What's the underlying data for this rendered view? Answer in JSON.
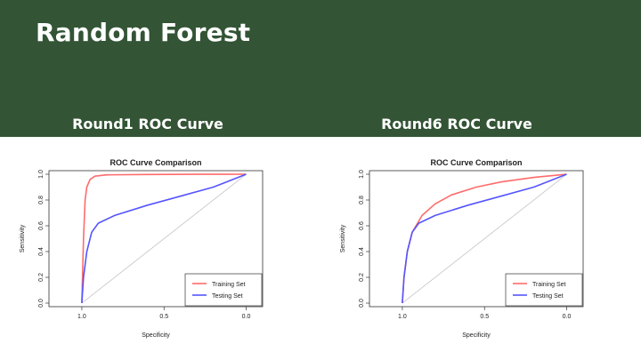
{
  "header": {
    "title": "Random Forest",
    "bg_color": "#335435"
  },
  "charts": {
    "left_heading": "Round1 ROC Curve",
    "right_heading": "Round6 ROC Curve"
  },
  "chart_data": [
    {
      "type": "line",
      "title": "ROC Curve Comparison",
      "xlabel": "Specificity",
      "ylabel": "Sensitivity",
      "xlim": [
        1.2,
        -0.1
      ],
      "ylim": [
        0.0,
        1.0
      ],
      "x_ticks": [
        "1.0",
        "0.5",
        "0.0"
      ],
      "y_ticks": [
        "0.0",
        "0.2",
        "0.4",
        "0.6",
        "0.8",
        "1.0"
      ],
      "legend_position": "bottom-right",
      "reference_line": true,
      "series": [
        {
          "name": "Training Set",
          "color": "#ff6b6b",
          "points": [
            [
              1.0,
              0.0
            ],
            [
              0.99,
              0.5
            ],
            [
              0.98,
              0.8
            ],
            [
              0.97,
              0.9
            ],
            [
              0.95,
              0.96
            ],
            [
              0.92,
              0.985
            ],
            [
              0.85,
              0.995
            ],
            [
              0.6,
              0.998
            ],
            [
              0.3,
              0.999
            ],
            [
              0.0,
              1.0
            ]
          ]
        },
        {
          "name": "Testing Set",
          "color": "#5555ff",
          "points": [
            [
              1.0,
              0.0
            ],
            [
              0.99,
              0.2
            ],
            [
              0.97,
              0.4
            ],
            [
              0.94,
              0.55
            ],
            [
              0.9,
              0.62
            ],
            [
              0.8,
              0.68
            ],
            [
              0.6,
              0.76
            ],
            [
              0.4,
              0.83
            ],
            [
              0.2,
              0.9
            ],
            [
              0.1,
              0.95
            ],
            [
              0.0,
              1.0
            ]
          ]
        }
      ]
    },
    {
      "type": "line",
      "title": "ROC Curve Comparison",
      "xlabel": "Specificity",
      "ylabel": "Sensitivity",
      "xlim": [
        1.2,
        -0.1
      ],
      "ylim": [
        0.0,
        1.0
      ],
      "x_ticks": [
        "1.0",
        "0.5",
        "0.0"
      ],
      "y_ticks": [
        "0.0",
        "0.2",
        "0.4",
        "0.6",
        "0.8",
        "1.0"
      ],
      "legend_position": "bottom-right",
      "reference_line": true,
      "series": [
        {
          "name": "Training Set",
          "color": "#ff6b6b",
          "points": [
            [
              1.0,
              0.0
            ],
            [
              0.99,
              0.2
            ],
            [
              0.97,
              0.4
            ],
            [
              0.94,
              0.55
            ],
            [
              0.88,
              0.68
            ],
            [
              0.8,
              0.77
            ],
            [
              0.7,
              0.84
            ],
            [
              0.55,
              0.9
            ],
            [
              0.4,
              0.94
            ],
            [
              0.2,
              0.975
            ],
            [
              0.0,
              1.0
            ]
          ]
        },
        {
          "name": "Testing Set",
          "color": "#5555ff",
          "points": [
            [
              1.0,
              0.0
            ],
            [
              0.99,
              0.2
            ],
            [
              0.97,
              0.4
            ],
            [
              0.94,
              0.55
            ],
            [
              0.9,
              0.62
            ],
            [
              0.8,
              0.68
            ],
            [
              0.6,
              0.76
            ],
            [
              0.4,
              0.83
            ],
            [
              0.2,
              0.9
            ],
            [
              0.1,
              0.95
            ],
            [
              0.0,
              1.0
            ]
          ]
        }
      ]
    }
  ]
}
